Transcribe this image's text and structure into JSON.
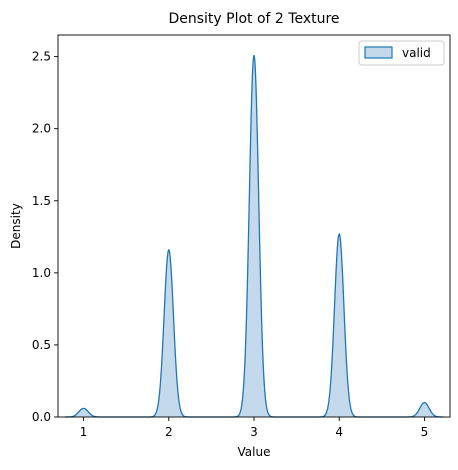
{
  "chart_data": {
    "type": "area",
    "title": "Density Plot of 2 Texture",
    "xlabel": "Value",
    "ylabel": "Density",
    "xlim": [
      0.7,
      5.3
    ],
    "ylim": [
      0,
      2.65
    ],
    "x_ticks": [
      1,
      2,
      3,
      4,
      5
    ],
    "y_ticks": [
      0.0,
      0.5,
      1.0,
      1.5,
      2.0,
      2.5
    ],
    "y_tick_labels": [
      "0.0",
      "0.5",
      "1.0",
      "1.5",
      "2.0",
      "2.5"
    ],
    "x_tick_labels": [
      "1",
      "2",
      "3",
      "4",
      "5"
    ],
    "grid": false,
    "legend": "top-right",
    "series": [
      {
        "name": "valid",
        "color": "#1f77b4",
        "fill_color": "#c5d9ec",
        "x_range": [
          0.78,
          5.22
        ],
        "peaks": [
          {
            "center": 1.0,
            "height": 0.06
          },
          {
            "center": 2.0,
            "height": 1.16
          },
          {
            "center": 3.0,
            "height": 2.51
          },
          {
            "center": 4.0,
            "height": 1.27
          },
          {
            "center": 5.0,
            "height": 0.1
          }
        ]
      }
    ]
  }
}
